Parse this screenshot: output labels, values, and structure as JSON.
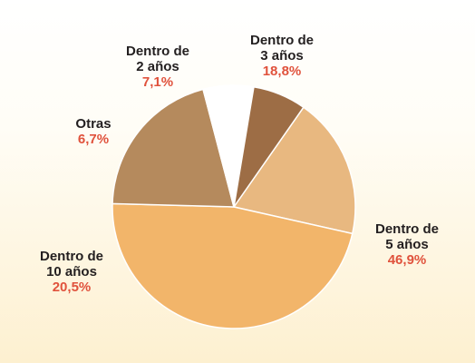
{
  "chart_data": {
    "type": "pie",
    "slices": [
      {
        "name_line1": "Dentro de",
        "name_line2": "3 años",
        "value": 18.8,
        "label": "18,8%",
        "color": "#e8b880"
      },
      {
        "name_line1": "Dentro de",
        "name_line2": "5 años",
        "value": 46.9,
        "label": "46,9%",
        "color": "#f2b56a"
      },
      {
        "name_line1": "Dentro de",
        "name_line2": "10 años",
        "value": 20.5,
        "label": "20,5%",
        "color": "#b58a5d"
      },
      {
        "name_line1": "Otras",
        "name_line2": "",
        "value": 6.7,
        "label": "6,7%",
        "color": "#ffffff"
      },
      {
        "name_line1": "Dentro de",
        "name_line2": "2 años",
        "value": 7.1,
        "label": "7,1%",
        "color": "#9d6d45"
      }
    ],
    "start_angle_deg": -55,
    "direction": "clockwise",
    "value_label_color": "#e0523c"
  }
}
